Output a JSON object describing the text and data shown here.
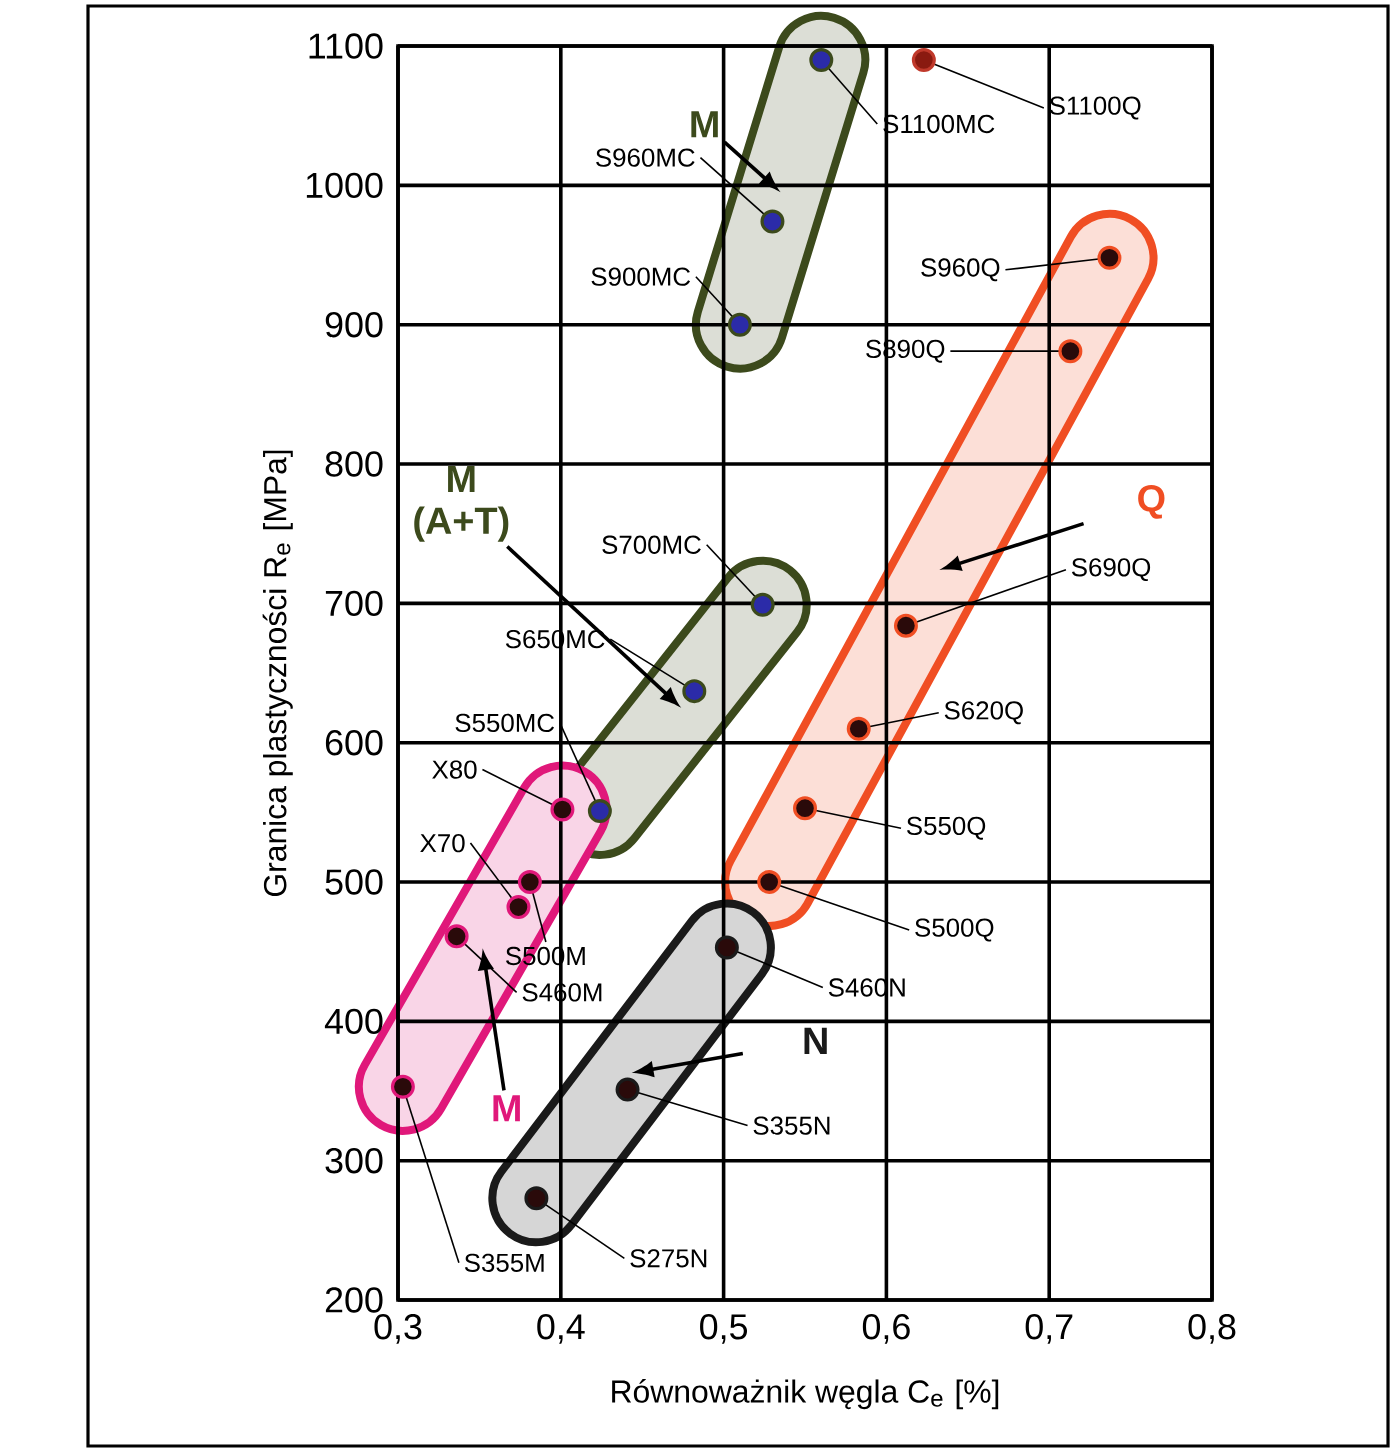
{
  "chart_data": {
    "type": "scatter",
    "xlabel": "Równoważnik węgla C$_{e}$ [%]",
    "ylabel": "Granica plastyczności R$_{e}$ [MPa]",
    "xlim": [
      0.3,
      0.8
    ],
    "xticks": [
      {
        "value": 0.3,
        "label": "0,3"
      },
      {
        "value": 0.4,
        "label": "0,4"
      },
      {
        "value": 0.5,
        "label": "0,5"
      },
      {
        "value": 0.6,
        "label": "0,6"
      },
      {
        "value": 0.7,
        "label": "0,7"
      },
      {
        "value": 0.8,
        "label": "0,8"
      }
    ],
    "ylim": [
      200,
      1100
    ],
    "yticks": [
      200,
      300,
      400,
      500,
      600,
      700,
      800,
      900,
      1000,
      1100
    ],
    "grid": true,
    "marker": "circle",
    "series": [
      {
        "name": "M",
        "color": "#3c4a1c",
        "x": [
          0.51,
          0.53,
          0.56
        ],
        "values": [
          900,
          974,
          1090
        ],
        "colors": [
          "#2b2ba8",
          "#2b2ba8",
          "#2b2ba8"
        ]
      },
      {
        "name": "**M** (A+T)",
        "color": "#3c4a1c",
        "x": [
          0.424,
          0.482,
          0.524
        ],
        "values": [
          551,
          637,
          699
        ],
        "colors": [
          "#2b2ba8",
          "#2b2ba8",
          "#2b2ba8"
        ]
      },
      {
        "name": "M",
        "color": "#e0187a",
        "x": [
          0.303,
          0.336,
          0.374,
          0.381,
          0.401
        ],
        "values": [
          353,
          461,
          482,
          500,
          552
        ],
        "colors": [
          "#2a0a0a",
          "#2a0a0a",
          "#2a0a0a",
          "#2a0a0a",
          "#2a0a0a"
        ]
      },
      {
        "name": "Q",
        "color": "#f04e23",
        "x": [
          0.528,
          0.55,
          0.583,
          0.612,
          0.713,
          0.737
        ],
        "values": [
          500,
          553,
          610,
          684,
          881,
          948
        ],
        "colors": [
          "#2a0a0a",
          "#2a0a0a",
          "#2a0a0a",
          "#2a0a0a",
          "#2a0a0a",
          "#2a0a0a"
        ]
      },
      {
        "name": "N",
        "color": "#1a1a1a",
        "x": [
          0.385,
          0.441,
          0.502
        ],
        "values": [
          273,
          351,
          453
        ],
        "colors": [
          "#2a0a0a",
          "#2a0a0a",
          "#2a0a0a"
        ]
      },
      {
        "color": "#c0392b",
        "x": [
          0.623
        ],
        "values": [
          1090
        ],
        "colors": [
          "#8a1a10"
        ]
      }
    ],
    "annotations": [
      {
        "text": "S1100MC",
        "x": 0.56,
        "y": 1090
      },
      {
        "text": "S1100Q",
        "x": 0.623,
        "y": 1090
      },
      {
        "text": "S960MC",
        "x": 0.53,
        "y": 974
      },
      {
        "text": "S900MC",
        "x": 0.51,
        "y": 900
      },
      {
        "text": "S960Q",
        "x": 0.737,
        "y": 948
      },
      {
        "text": "S890Q",
        "x": 0.713,
        "y": 881
      },
      {
        "text": "S700MC",
        "x": 0.524,
        "y": 699
      },
      {
        "text": "S690Q",
        "x": 0.612,
        "y": 684
      },
      {
        "text": "S650MC",
        "x": 0.482,
        "y": 637
      },
      {
        "text": "S620Q",
        "x": 0.583,
        "y": 610
      },
      {
        "text": "S550MC",
        "x": 0.424,
        "y": 551
      },
      {
        "text": "X80",
        "x": 0.401,
        "y": 552
      },
      {
        "text": "S550Q",
        "x": 0.55,
        "y": 553
      },
      {
        "text": "S500Q",
        "x": 0.528,
        "y": 500
      },
      {
        "text": "X70",
        "x": 0.374,
        "y": 482
      },
      {
        "text": "S500M",
        "x": 0.381,
        "y": 500
      },
      {
        "text": "S460M",
        "x": 0.336,
        "y": 461
      },
      {
        "text": "S460N",
        "x": 0.502,
        "y": 453
      },
      {
        "text": "S355N",
        "x": 0.441,
        "y": 351
      },
      {
        "text": "S355M",
        "x": 0.303,
        "y": 353
      },
      {
        "text": "S275N",
        "x": 0.385,
        "y": 273
      }
    ]
  }
}
